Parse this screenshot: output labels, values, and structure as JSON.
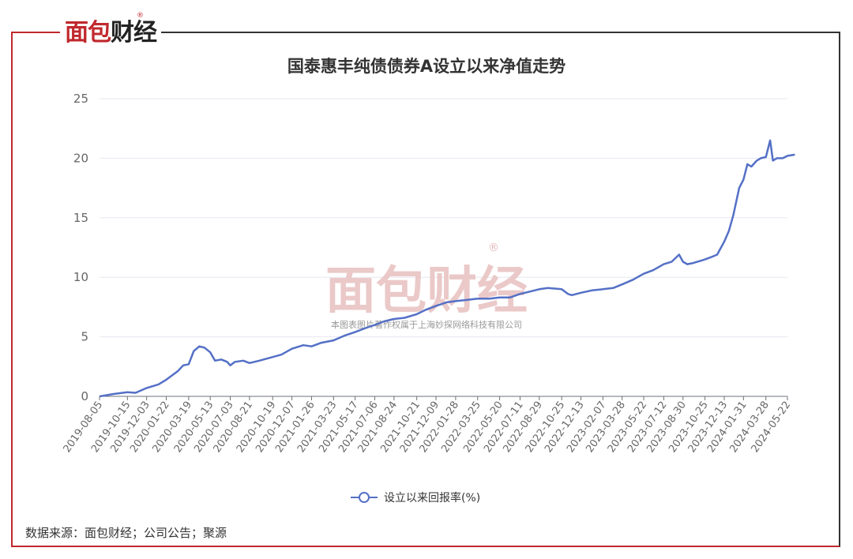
{
  "brand": {
    "logo_part1": "面包",
    "logo_part2": "财经",
    "registered": "®",
    "accent_color": "#c0282d"
  },
  "watermark": {
    "logo": "面包财经",
    "registered": "®",
    "copyright": "本图表图片著作权属于上海妙探网络科技有限公司"
  },
  "source_note": "数据来源：面包财经；公司公告；聚源",
  "chart_data": {
    "type": "line",
    "title": "国泰惠丰纯债债券A设立以来净值走势",
    "xlabel": "",
    "ylabel": "",
    "ylim": [
      0,
      25
    ],
    "yticks": [
      0,
      5,
      10,
      15,
      20,
      25
    ],
    "grid": true,
    "legend_position": "bottom",
    "line_color": "#5470c6",
    "categories": [
      "2019-08-05",
      "2019-10-15",
      "2019-12-03",
      "2020-01-22",
      "2020-03-19",
      "2020-05-13",
      "2020-07-03",
      "2020-08-21",
      "2020-10-19",
      "2020-12-07",
      "2021-01-26",
      "2021-03-23",
      "2021-05-17",
      "2021-07-06",
      "2021-08-24",
      "2021-10-21",
      "2021-12-09",
      "2022-01-28",
      "2022-03-25",
      "2022-05-20",
      "2022-07-11",
      "2022-08-29",
      "2022-10-25",
      "2022-12-13",
      "2023-02-07",
      "2023-03-28",
      "2023-05-22",
      "2023-07-12",
      "2023-08-30",
      "2023-10-25",
      "2023-12-13",
      "2024-01-31",
      "2024-03-28",
      "2024-05-22"
    ],
    "series": [
      {
        "name": "设立以来回报率(%)",
        "x": [
          "2019-08-05",
          "2019-09-10",
          "2019-10-15",
          "2019-11-05",
          "2019-12-03",
          "2020-01-02",
          "2020-01-22",
          "2020-02-20",
          "2020-03-05",
          "2020-03-19",
          "2020-04-01",
          "2020-04-15",
          "2020-04-28",
          "2020-05-13",
          "2020-05-25",
          "2020-06-10",
          "2020-06-25",
          "2020-07-03",
          "2020-07-15",
          "2020-08-05",
          "2020-08-21",
          "2020-09-15",
          "2020-10-19",
          "2020-11-10",
          "2020-12-07",
          "2021-01-05",
          "2021-01-26",
          "2021-02-20",
          "2021-03-23",
          "2021-04-20",
          "2021-05-17",
          "2021-06-10",
          "2021-07-06",
          "2021-07-30",
          "2021-08-24",
          "2021-09-20",
          "2021-10-21",
          "2021-11-15",
          "2021-12-09",
          "2022-01-05",
          "2022-01-28",
          "2022-02-25",
          "2022-03-25",
          "2022-04-25",
          "2022-05-20",
          "2022-06-15",
          "2022-07-11",
          "2022-08-05",
          "2022-08-29",
          "2022-09-20",
          "2022-10-25",
          "2022-11-10",
          "2022-11-20",
          "2022-12-13",
          "2023-01-10",
          "2023-02-07",
          "2023-03-05",
          "2023-03-28",
          "2023-04-25",
          "2023-05-22",
          "2023-06-15",
          "2023-07-12",
          "2023-08-01",
          "2023-08-20",
          "2023-08-30",
          "2023-09-10",
          "2023-09-25",
          "2023-10-25",
          "2023-11-10",
          "2023-11-25",
          "2023-12-13",
          "2023-12-25",
          "2024-01-05",
          "2024-01-20",
          "2024-01-31",
          "2024-02-10",
          "2024-02-20",
          "2024-03-05",
          "2024-03-15",
          "2024-03-28",
          "2024-04-08",
          "2024-04-15",
          "2024-04-25",
          "2024-05-10",
          "2024-05-22",
          "2024-06-10"
        ],
        "values": [
          0.0,
          0.2,
          0.35,
          0.3,
          0.7,
          1.0,
          1.4,
          2.1,
          2.6,
          2.7,
          3.8,
          4.2,
          4.1,
          3.7,
          3.0,
          3.1,
          2.9,
          2.6,
          2.9,
          3.0,
          2.8,
          3.0,
          3.3,
          3.5,
          4.0,
          4.3,
          4.2,
          4.5,
          4.7,
          5.1,
          5.4,
          5.7,
          6.0,
          6.3,
          6.5,
          6.6,
          6.9,
          7.3,
          7.6,
          7.9,
          8.0,
          8.1,
          8.2,
          8.2,
          8.3,
          8.3,
          8.6,
          8.8,
          9.0,
          9.1,
          9.0,
          8.6,
          8.5,
          8.7,
          8.9,
          9.0,
          9.1,
          9.4,
          9.8,
          10.3,
          10.6,
          11.1,
          11.3,
          11.9,
          11.3,
          11.1,
          11.2,
          11.5,
          11.7,
          11.9,
          13.0,
          13.9,
          15.2,
          17.5,
          18.2,
          19.5,
          19.3,
          19.8,
          20.0,
          20.1,
          21.5,
          19.8,
          20.0,
          20.0,
          20.2,
          20.3
        ]
      }
    ]
  }
}
